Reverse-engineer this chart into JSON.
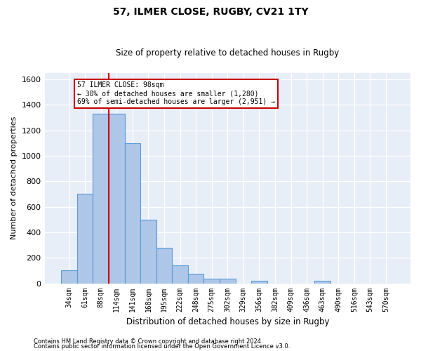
{
  "title1": "57, ILMER CLOSE, RUGBY, CV21 1TY",
  "title2": "Size of property relative to detached houses in Rugby",
  "xlabel": "Distribution of detached houses by size in Rugby",
  "ylabel": "Number of detached properties",
  "annotation_line1": "57 ILMER CLOSE: 98sqm",
  "annotation_line2": "← 30% of detached houses are smaller (1,280)",
  "annotation_line3": "69% of semi-detached houses are larger (2,951) →",
  "categories": [
    "34sqm",
    "61sqm",
    "88sqm",
    "114sqm",
    "141sqm",
    "168sqm",
    "195sqm",
    "222sqm",
    "248sqm",
    "275sqm",
    "302sqm",
    "329sqm",
    "356sqm",
    "382sqm",
    "409sqm",
    "436sqm",
    "463sqm",
    "490sqm",
    "516sqm",
    "543sqm",
    "570sqm"
  ],
  "values": [
    100,
    700,
    1330,
    1330,
    1100,
    500,
    280,
    140,
    75,
    35,
    35,
    0,
    20,
    0,
    0,
    0,
    20,
    0,
    0,
    0,
    0
  ],
  "bar_color": "#aec6e8",
  "bar_edge_color": "#5b9bd5",
  "red_line_color": "#cc0000",
  "annotation_box_color": "#cc0000",
  "background_color": "#e8eef8",
  "ylim": [
    0,
    1650
  ],
  "yticks": [
    0,
    200,
    400,
    600,
    800,
    1000,
    1200,
    1400,
    1600
  ],
  "footer1": "Contains HM Land Registry data © Crown copyright and database right 2024.",
  "footer2": "Contains public sector information licensed under the Open Government Licence v3.0."
}
